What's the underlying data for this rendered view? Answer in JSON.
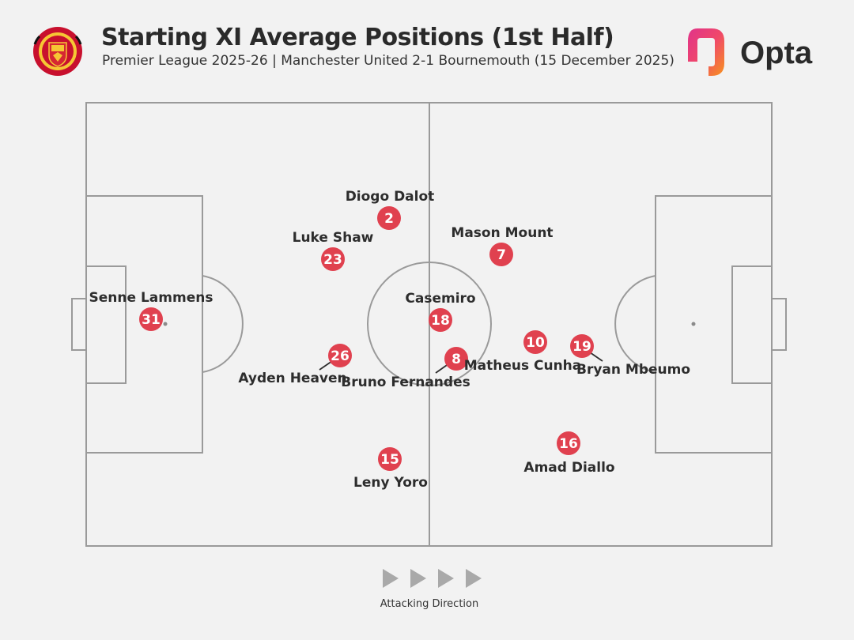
{
  "header": {
    "title": "Starting XI Average Positions (1st Half)",
    "subtitle": "Premier League 2025-26 | Manchester United 2-1 Bournemouth (15 December 2025)",
    "crest_icon": "manchester-united-crest",
    "brand": "Opta",
    "brand_icon": "opta-logo"
  },
  "colors": {
    "marker": "#e0414f",
    "pitch_lines": "#9a9a9a",
    "background": "#f2f2f2",
    "arrow": "#a9a9a9"
  },
  "players": [
    {
      "name": "Senne Lammens",
      "number": "31"
    },
    {
      "name": "Diogo Dalot",
      "number": "2"
    },
    {
      "name": "Luke Shaw",
      "number": "23"
    },
    {
      "name": "Mason Mount",
      "number": "7"
    },
    {
      "name": "Casemiro",
      "number": "18"
    },
    {
      "name": "Ayden Heaven",
      "number": "26"
    },
    {
      "name": "Bruno Fernandes",
      "number": "8"
    },
    {
      "name": "Matheus Cunha",
      "number": "10"
    },
    {
      "name": "Bryan Mbeumo",
      "number": "19"
    },
    {
      "name": "Leny Yoro",
      "number": "15"
    },
    {
      "name": "Amad Diallo",
      "number": "16"
    }
  ],
  "footer": {
    "attacking_direction": "Attacking Direction",
    "arrow_icon": "play-arrow-icon"
  }
}
